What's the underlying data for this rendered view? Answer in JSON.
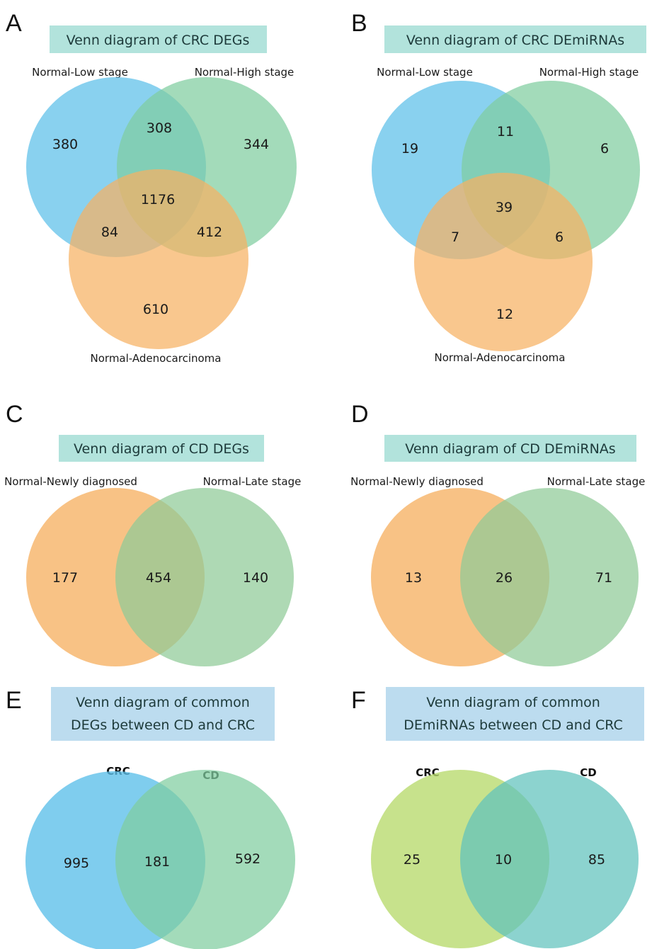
{
  "colors": {
    "blue": "#5bbfe9",
    "green": "#7fcda0",
    "orange": "#f6b163",
    "light_green": "#8fcb97",
    "lime": "#b7da6c",
    "teal": "#5fc2bd",
    "title_bg_teal": "#b2e3dc",
    "title_bg_blue": "#bcdcef"
  },
  "panels": [
    {
      "letter": "A",
      "title": "Venn diagram of CRC DEGs",
      "sets": [
        "Normal-Low stage",
        "Normal-High stage",
        "Normal-Adenocarcinoma"
      ],
      "regions": {
        "a_only": "380",
        "b_only": "344",
        "c_only": "610",
        "ab": "308",
        "ac": "84",
        "bc": "412",
        "abc": "1176"
      }
    },
    {
      "letter": "B",
      "title": "Venn diagram of CRC DEmiRNAs",
      "sets": [
        "Normal-Low stage",
        "Normal-High stage",
        "Normal-Adenocarcinoma"
      ],
      "regions": {
        "a_only": "19",
        "b_only": "6",
        "c_only": "12",
        "ab": "11",
        "ac": "7",
        "bc": "6",
        "abc": "39"
      }
    },
    {
      "letter": "C",
      "title": "Venn diagram of CD DEGs",
      "sets": [
        "Normal-Newly diagnosed",
        "Normal-Late stage"
      ],
      "regions": {
        "a_only": "177",
        "ab": "454",
        "b_only": "140"
      }
    },
    {
      "letter": "D",
      "title": "Venn diagram of CD DEmiRNAs",
      "sets": [
        "Normal-Newly diagnosed",
        "Normal-Late stage"
      ],
      "regions": {
        "a_only": "13",
        "ab": "26",
        "b_only": "71"
      }
    },
    {
      "letter": "E",
      "title_lines": [
        "Venn diagram of common",
        "DEGs between CD and CRC"
      ],
      "sets": [
        "CRC",
        "CD"
      ],
      "regions": {
        "a_only": "995",
        "ab": "181",
        "b_only": "592"
      }
    },
    {
      "letter": "F",
      "title_lines": [
        "Venn diagram of common",
        "DEmiRNAs between CD and CRC"
      ],
      "sets": [
        "CRC",
        "CD"
      ],
      "regions": {
        "a_only": "25",
        "ab": "10",
        "b_only": "85"
      }
    }
  ]
}
